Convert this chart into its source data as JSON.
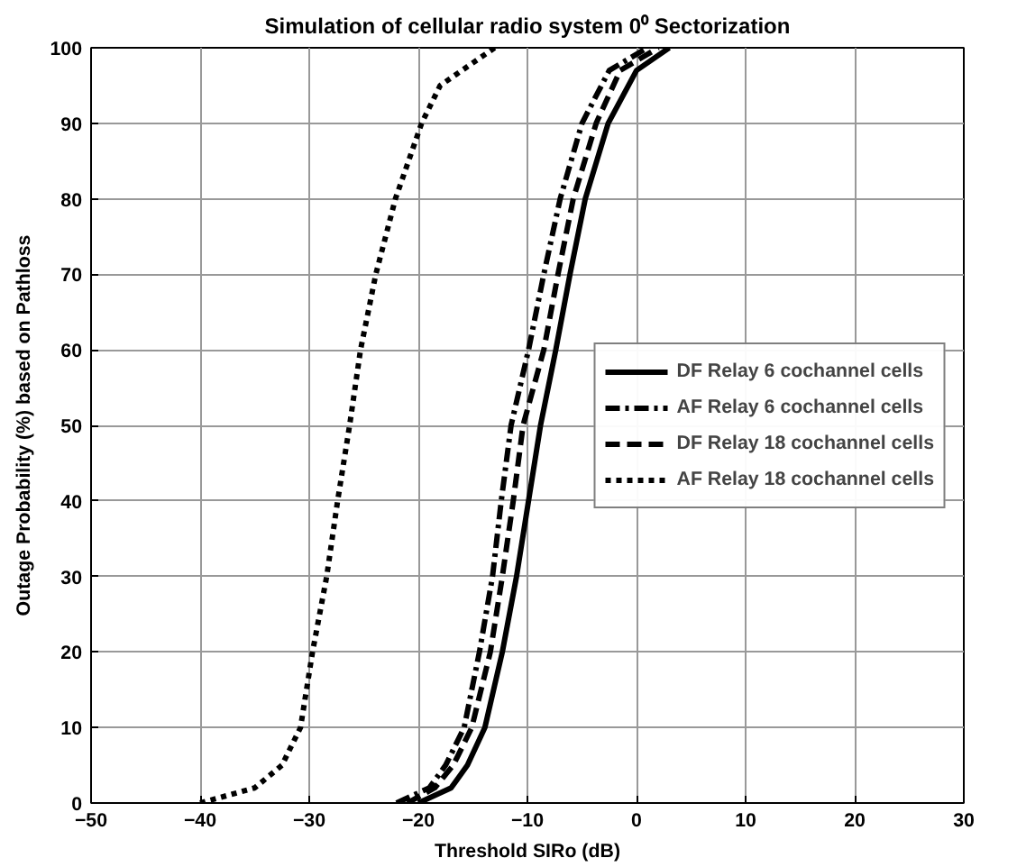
{
  "chart_data": {
    "type": "line",
    "title": "Simulation of cellular radio system 0⁰ Sectorization",
    "xlabel": "Threshold SIRo (dB)",
    "ylabel": "Outage Probability (%) based on Pathloss",
    "xlim": [
      -50,
      30
    ],
    "ylim": [
      0,
      100
    ],
    "xticks": [
      -50,
      -40,
      -30,
      -20,
      -10,
      0,
      10,
      20,
      30
    ],
    "yticks": [
      0,
      10,
      20,
      30,
      40,
      50,
      60,
      70,
      80,
      90,
      100
    ],
    "grid": true,
    "legend": "right",
    "series": [
      {
        "name": "DF Relay 6 cochannel cells",
        "color": "#000000",
        "line_style": "solid",
        "x": [
          -20,
          -17,
          -15.5,
          -13.9,
          -12.3,
          -11,
          -9.9,
          -8.8,
          -7.4,
          -6.1,
          -4.7,
          -2.6,
          0,
          3
        ],
        "values": [
          0,
          2,
          5,
          10,
          20,
          30,
          40,
          50,
          60,
          70,
          80,
          90,
          97,
          100
        ]
      },
      {
        "name": "AF Relay 6 cochannel cells",
        "color": "#000000",
        "line_style": "dashdot",
        "x": [
          -22,
          -19,
          -17.5,
          -15.8,
          -14.4,
          -13.2,
          -12.4,
          -11.5,
          -9.9,
          -8.5,
          -7,
          -5,
          -2.5,
          1
        ],
        "values": [
          0,
          2,
          5,
          10,
          20,
          30,
          40,
          50,
          60,
          70,
          80,
          90,
          97,
          100
        ]
      },
      {
        "name": "DF Relay 18 cochannel cells",
        "color": "#000000",
        "line_style": "dashed",
        "x": [
          -21,
          -18.5,
          -16.8,
          -15.1,
          -13.4,
          -12.3,
          -11.3,
          -10.4,
          -8.5,
          -7.2,
          -5.8,
          -3.7,
          -1.5,
          2
        ],
        "values": [
          0,
          2,
          5,
          10,
          20,
          30,
          40,
          50,
          60,
          70,
          80,
          90,
          97,
          100
        ]
      },
      {
        "name": "AF Relay 18 cochannel cells",
        "color": "#000000",
        "line_style": "dotted",
        "x": [
          -40,
          -35,
          -32.5,
          -30.8,
          -29.7,
          -28.4,
          -27.4,
          -26.3,
          -25.3,
          -23.9,
          -22.1,
          -19.7,
          -18,
          -13
        ],
        "values": [
          0,
          2,
          5,
          10,
          20,
          30,
          40,
          50,
          60,
          70,
          80,
          90,
          95,
          100
        ]
      }
    ]
  }
}
